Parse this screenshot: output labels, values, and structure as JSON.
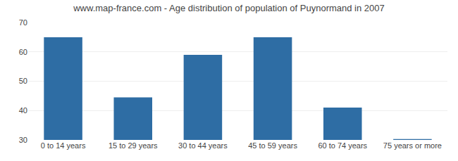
{
  "chart_data": {
    "type": "bar",
    "title": "www.map-france.com - Age distribution of population of Puynormand in 2007",
    "categories": [
      "0 to 14 years",
      "15 to 29 years",
      "30 to 44 years",
      "45 to 59 years",
      "60 to 74 years",
      "75 years or more"
    ],
    "values": [
      65,
      44.5,
      59,
      65,
      41,
      30.3
    ],
    "color": "#2e6da4",
    "ylim": [
      30,
      70
    ],
    "yticks": [
      30,
      40,
      50,
      60,
      70
    ],
    "grid": true
  }
}
